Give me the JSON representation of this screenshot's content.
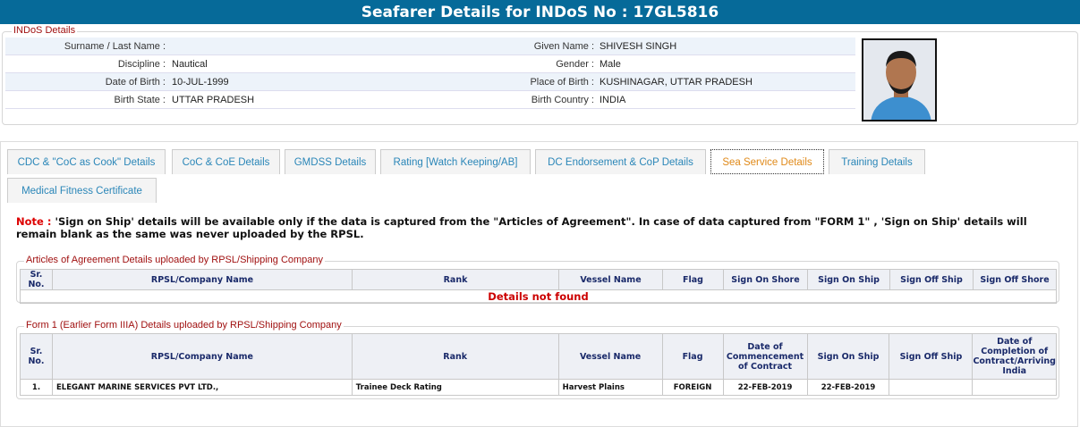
{
  "header": {
    "title": "Seafarer Details for INDoS No : 17GL5816"
  },
  "indos": {
    "legend": "INDoS Details",
    "rows": [
      {
        "l1": "Surname / Last Name :",
        "v1": "",
        "l2": "Given Name :",
        "v2": "SHIVESH SINGH"
      },
      {
        "l1": "Discipline :",
        "v1": "Nautical",
        "l2": "Gender :",
        "v2": "Male"
      },
      {
        "l1": "Date of Birth :",
        "v1": "10-JUL-1999",
        "l2": "Place of Birth :",
        "v2": "KUSHINAGAR, UTTAR PRADESH"
      },
      {
        "l1": "Birth State :",
        "v1": "UTTAR PRADESH",
        "l2": "Birth Country :",
        "v2": "INDIA"
      }
    ]
  },
  "tabs": [
    "CDC & \"CoC as Cook\" Details",
    "CoC & CoE Details",
    "GMDSS Details",
    "Rating [Watch Keeping/AB]",
    "DC Endorsement & CoP Details",
    "Sea Service Details",
    "Training Details",
    "Medical Fitness Certificate"
  ],
  "active_tab": "Sea Service Details",
  "note": {
    "label": "Note :",
    "text": " 'Sign on Ship' details will be available only if the data is captured from the \"Articles of Agreement\". In case of data captured from \"FORM 1\" , 'Sign on Ship' details will remain blank as the same was never uploaded by the RPSL."
  },
  "articles": {
    "legend": "Articles of Agreement Details uploaded by RPSL/Shipping Company",
    "columns": [
      "Sr. No.",
      "RPSL/Company Name",
      "Rank",
      "Vessel Name",
      "Flag",
      "Sign On Shore",
      "Sign On Ship",
      "Sign Off Ship",
      "Sign Off Shore"
    ],
    "empty": "Details not found"
  },
  "form1": {
    "legend": "Form 1 (Earlier Form IIIA) Details uploaded by RPSL/Shipping Company",
    "columns": [
      "Sr. No.",
      "RPSL/Company Name",
      "Rank",
      "Vessel Name",
      "Flag",
      "Date of Commencement of Contract",
      "Sign On Ship",
      "Sign Off Ship",
      "Date of Completion of Contract/Arriving India"
    ],
    "rows": [
      [
        "1.",
        "ELEGANT MARINE SERVICES PVT LTD.,",
        "Trainee Deck Rating",
        "Harvest Plains",
        "FOREIGN",
        "22-FEB-2019",
        "22-FEB-2019",
        "",
        ""
      ]
    ]
  },
  "colors": {
    "header": "#066a99",
    "legend": "#a01010",
    "tab_text": "#2a86b8",
    "active_tab": "#e08a1a"
  }
}
